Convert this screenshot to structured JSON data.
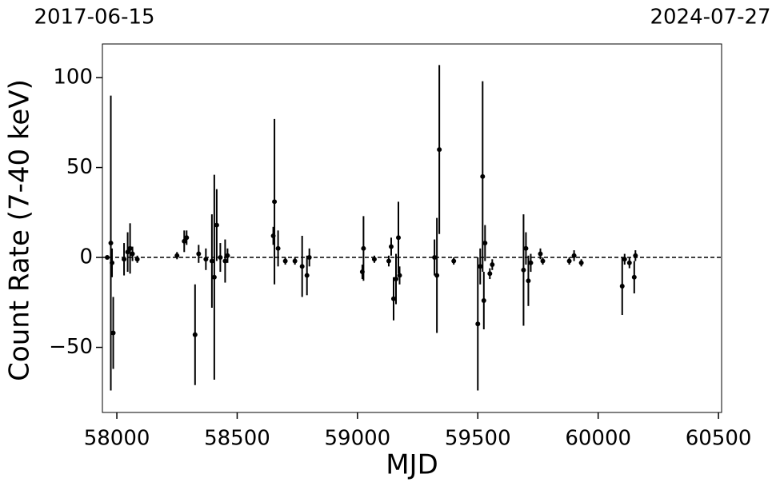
{
  "chart_data": {
    "type": "scatter",
    "annotations": [
      "2017-06-15",
      "2024-07-27"
    ],
    "xlabel": "MJD",
    "ylabel": "Count Rate (7-40 keV)",
    "xlim": [
      57940,
      60513
    ],
    "ylim": [
      -86.2,
      118.7
    ],
    "xticks": [
      58000,
      58500,
      59000,
      59500,
      60000,
      60500
    ],
    "yticks": [
      {
        "value": -50,
        "label": "−50"
      },
      0,
      50,
      100
    ],
    "reference_line": 0,
    "color": "#000000",
    "x": [
      57960,
      57975,
      57980,
      57985,
      58030,
      58045,
      58055,
      58065,
      58085,
      58250,
      58280,
      58290,
      58325,
      58340,
      58370,
      58395,
      58405,
      58415,
      58430,
      58450,
      58460,
      58650,
      58655,
      58670,
      58700,
      58740,
      58770,
      58790,
      58800,
      59020,
      59025,
      59070,
      59130,
      59140,
      59150,
      59160,
      59170,
      59175,
      59320,
      59330,
      59340,
      59400,
      59500,
      59510,
      59520,
      59525,
      59530,
      59550,
      59560,
      59690,
      59700,
      59710,
      59720,
      59760,
      59770,
      59880,
      59900,
      59930,
      60100,
      60110,
      60130,
      60150,
      60155
    ],
    "y": [
      0,
      8,
      -3,
      -42,
      -1,
      3,
      5,
      2,
      -1,
      1,
      9,
      11,
      -43,
      2,
      -1,
      -2,
      -11,
      18,
      0,
      -2,
      1,
      12,
      31,
      5,
      -2,
      -2,
      -5,
      -10,
      0,
      -8,
      5,
      -1,
      -2,
      6,
      -23,
      -12,
      11,
      -10,
      0,
      -10,
      60,
      -2,
      -37,
      -5,
      45,
      -24,
      8,
      -9,
      -4,
      -7,
      5,
      -13,
      -3,
      2,
      -2,
      -2,
      1,
      -3,
      -16,
      -1,
      -3,
      -11,
      1
    ],
    "err": [
      1,
      82,
      8,
      20,
      9,
      11,
      14,
      4,
      2,
      2,
      6,
      4,
      28,
      5,
      6,
      26,
      57,
      20,
      8,
      12,
      4,
      5,
      46,
      10,
      2,
      2,
      17,
      11,
      5,
      4,
      18,
      2,
      3,
      5,
      12,
      14,
      20,
      5,
      10,
      32,
      47,
      2,
      37,
      10,
      53,
      16,
      10,
      3,
      3,
      31,
      9,
      14,
      5,
      3,
      2,
      2,
      3,
      2,
      16,
      3,
      3,
      9,
      3
    ]
  }
}
